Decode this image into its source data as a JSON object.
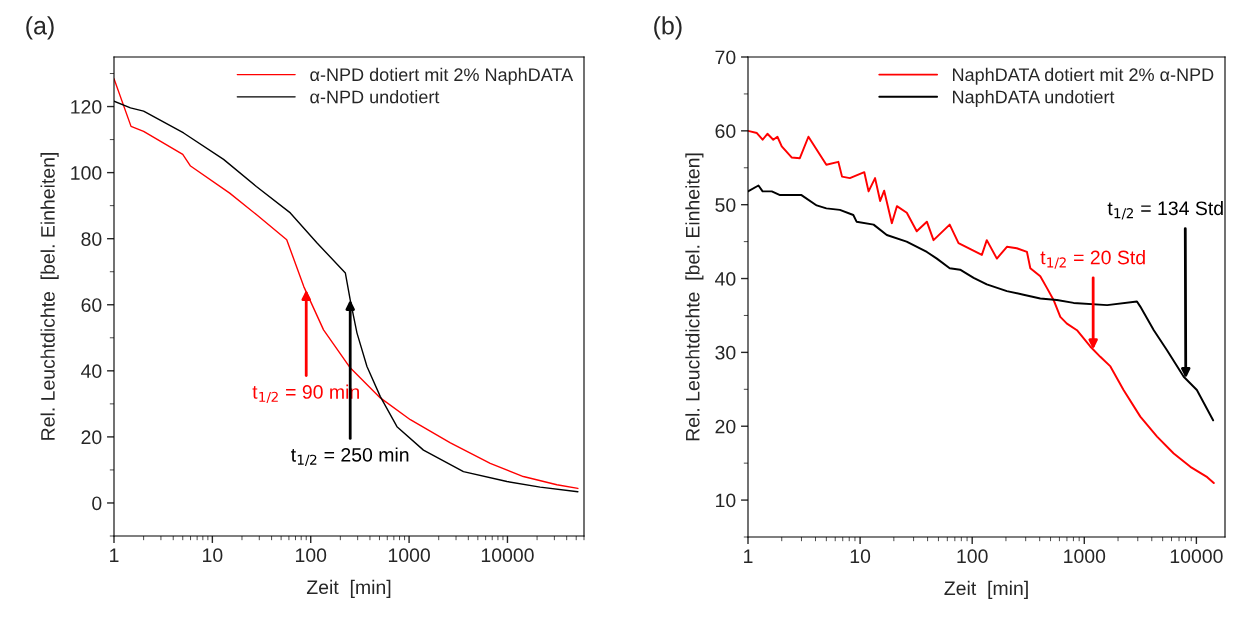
{
  "chart_data": [
    {
      "type": "line",
      "title": "(a)",
      "xlabel": "Zeit  [min]",
      "ylabel": "Rel. Leuchtdichte  [bel. Einheiten]",
      "log": "x",
      "xlim": [
        1,
        60000
      ],
      "xticks": [
        1,
        10,
        100,
        1000,
        10000
      ],
      "ylim": [
        -10,
        135
      ],
      "yticks": [
        0,
        20,
        40,
        60,
        80,
        100,
        120
      ],
      "grid": false,
      "legend": "top right",
      "marker": "none",
      "line_style": "solid",
      "series": [
        {
          "name": "α-NPD dotiert mit 2% NaphDATA",
          "color": "#ff0000",
          "x": [
            1,
            1.49,
            2,
            5,
            6,
            15,
            28,
            57,
            85,
            135,
            252,
            510,
            1030,
            2630,
            6680,
            14500,
            31800,
            52000
          ],
          "values": [
            128.4,
            114,
            112.5,
            105.5,
            102,
            93.8,
            87.3,
            79.7,
            65.5,
            52.4,
            40.9,
            31.8,
            25.2,
            18.2,
            12,
            8,
            5.5,
            4.4
          ]
        },
        {
          "name": "α-NPD undotiert",
          "color": "#000000",
          "x": [
            1,
            1.47,
            2,
            5.1,
            13,
            28,
            62,
            116,
            225,
            252,
            295,
            373,
            510,
            753,
            1400,
            3570,
            9880,
            21500,
            52000
          ],
          "values": [
            121.6,
            119.6,
            118.6,
            112,
            104,
            95.8,
            87.8,
            78.7,
            69.6,
            61.5,
            51.5,
            41.3,
            32.2,
            23.1,
            16,
            9.5,
            6.5,
            4.8,
            3.4
          ]
        }
      ],
      "annotations": [
        {
          "text": "t$_{1/2}$ = 90 min",
          "x": 90,
          "y": 64.5
        },
        {
          "text": "t$_{1/2}$ = 250 min",
          "x": 252,
          "y": 61.5
        }
      ]
    },
    {
      "type": "line",
      "title": "(b)",
      "xlabel": "Zeit  [min]",
      "ylabel": "Rel. Leuchtdichte  [bel. Einheiten]",
      "log": "x",
      "xlim": [
        1,
        18000
      ],
      "xticks": [
        1,
        10,
        100,
        1000,
        10000
      ],
      "ylim": [
        5,
        70
      ],
      "yticks": [
        10,
        20,
        30,
        40,
        50,
        60,
        70
      ],
      "grid": false,
      "legend": "top right",
      "marker": "none",
      "line_style": "solid",
      "series": [
        {
          "name": "NaphDATA dotiert mit 2% α-NPD",
          "color": "#ff0000",
          "x": [
            1,
            1.2,
            1.35,
            1.49,
            1.68,
            1.83,
            2.0,
            2.45,
            2.9,
            3.46,
            5.0,
            6.4,
            6.9,
            8.1,
            10.9,
            11.9,
            13.6,
            15.1,
            16.4,
            19.2,
            21.3,
            26.1,
            32,
            39.4,
            45.2,
            63,
            75.5,
            122,
            135,
            166,
            204,
            250,
            308,
            330,
            405,
            465,
            532,
            611,
            700,
            860,
            1130,
            1390,
            1710,
            2240,
            3160,
            4460,
            6280,
            8840,
            12500,
            14300
          ],
          "values": [
            60.0,
            59.7,
            58.8,
            59.6,
            58.8,
            59.2,
            57.9,
            56.4,
            56.3,
            59.2,
            55.4,
            55.8,
            53.8,
            53.6,
            54.4,
            51.8,
            53.6,
            50.5,
            51.9,
            47.5,
            49.8,
            48.9,
            46.4,
            47.7,
            45.2,
            47.3,
            44.8,
            43.2,
            45.2,
            42.7,
            44.3,
            44.1,
            43.6,
            41.4,
            40.3,
            38.7,
            37.1,
            34.8,
            33.9,
            33.0,
            30.8,
            29.4,
            28.1,
            24.9,
            21.3,
            18.6,
            16.3,
            14.5,
            13.1,
            12.3
          ]
        },
        {
          "name": "NaphDATA undotiert",
          "color": "#000000",
          "x": [
            1,
            1.24,
            1.35,
            1.63,
            1.93,
            3.0,
            4.1,
            5.0,
            6.6,
            8.7,
            9.3,
            13.2,
            17.3,
            26,
            39.4,
            48.4,
            63,
            78,
            103,
            135,
            204,
            287,
            405,
            570,
            803,
            1600,
            2950,
            3160,
            4170,
            5470,
            7710,
            10100,
            14100
          ],
          "values": [
            51.8,
            52.6,
            51.8,
            51.8,
            51.3,
            51.3,
            49.9,
            49.5,
            49.3,
            48.6,
            47.7,
            47.3,
            45.9,
            45,
            43.6,
            42.7,
            41.4,
            41.2,
            40.1,
            39.2,
            38.3,
            37.8,
            37.3,
            37.1,
            36.7,
            36.4,
            36.9,
            36.2,
            33,
            30.3,
            26.7,
            24.9,
            20.8
          ]
        }
      ],
      "annotations": [
        {
          "text": "t$_{1/2}$ = 20 Std",
          "x": 1200,
          "y": 30.4
        },
        {
          "text": "t$_{1/2}$ = 134 Std",
          "x": 8040,
          "y": 26.5
        }
      ]
    }
  ]
}
